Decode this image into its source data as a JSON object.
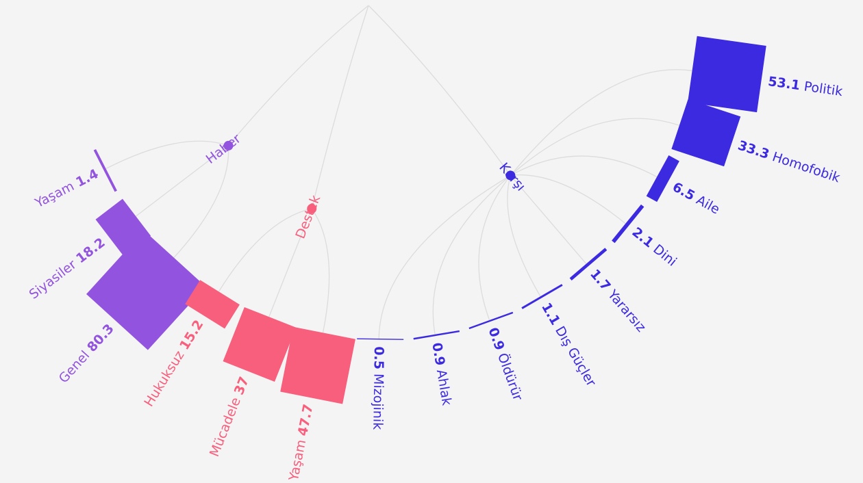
{
  "chart_data": {
    "type": "radial_tree",
    "groups": [
      {
        "name": "Haber",
        "color": "#9254de",
        "leaves": [
          {
            "name": "Yaşam",
            "value": 1.4
          },
          {
            "name": "Siyasiler",
            "value": 18.2
          },
          {
            "name": "Genel",
            "value": 80.3
          }
        ]
      },
      {
        "name": "Destek",
        "color": "#f75f7d",
        "leaves": [
          {
            "name": "Hukuksuz",
            "value": 15.2
          },
          {
            "name": "Mücadele",
            "value": 37
          },
          {
            "name": "Yaşam",
            "value": 47.7
          }
        ]
      },
      {
        "name": "Karşı",
        "color": "#3b2ae0",
        "leaves": [
          {
            "name": "Mizojinik",
            "value": 0.5
          },
          {
            "name": "Ahlak",
            "value": 0.9
          },
          {
            "name": "Öldürür",
            "value": 0.9
          },
          {
            "name": "Dış Güçler",
            "value": 1.1
          },
          {
            "name": "Yararsız",
            "value": 1.7
          },
          {
            "name": "Dini",
            "value": 2.1
          },
          {
            "name": "Aile",
            "value": 6.5
          },
          {
            "name": "Homofobik",
            "value": 33.3
          },
          {
            "name": "Politik",
            "value": 53.1
          }
        ]
      }
    ]
  }
}
